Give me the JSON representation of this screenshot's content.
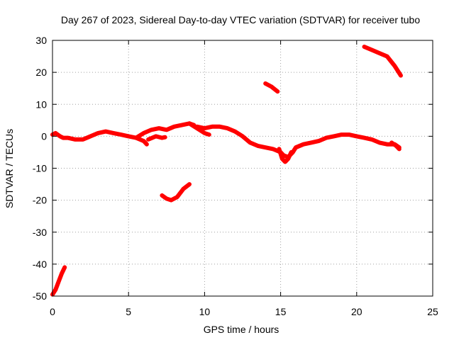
{
  "chart_data": {
    "type": "scatter",
    "title": "Day 267 of 2023, Sidereal Day-to-day VTEC variation (SDTVAR) for receiver tubo",
    "xlabel": "GPS time / hours",
    "ylabel": "SDTVAR / TECUs",
    "xlim": [
      0,
      25
    ],
    "ylim": [
      -50,
      30
    ],
    "xticks": [
      0,
      5,
      10,
      15,
      20,
      25
    ],
    "yticks": [
      -50,
      -40,
      -30,
      -20,
      -10,
      0,
      10,
      20,
      30
    ],
    "grid": true,
    "series_color": "#ff0000",
    "series": [
      {
        "name": "arc-1",
        "points": [
          [
            0.0,
            -49.5
          ],
          [
            0.2,
            -48
          ],
          [
            0.4,
            -45.5
          ],
          [
            0.6,
            -43
          ],
          [
            0.8,
            -41
          ]
        ]
      },
      {
        "name": "arc-2",
        "points": [
          [
            0.0,
            0.5
          ],
          [
            0.2,
            1
          ],
          [
            0.5,
            0
          ],
          [
            0.7,
            -0.5
          ],
          [
            1.0,
            -0.5
          ],
          [
            1.5,
            -1
          ],
          [
            2.0,
            -1
          ],
          [
            2.5,
            0
          ],
          [
            3.0,
            1
          ],
          [
            3.5,
            1.5
          ],
          [
            4.0,
            1
          ],
          [
            4.5,
            0.5
          ],
          [
            5.0,
            0
          ],
          [
            5.5,
            -0.5
          ],
          [
            6.0,
            -1.5
          ],
          [
            6.2,
            -2.5
          ]
        ]
      },
      {
        "name": "arc-3",
        "points": [
          [
            5.5,
            -0.5
          ],
          [
            6.0,
            1
          ],
          [
            6.5,
            2
          ],
          [
            7.0,
            2.5
          ],
          [
            7.5,
            2
          ],
          [
            8.0,
            3
          ],
          [
            8.5,
            3.5
          ],
          [
            9.0,
            4
          ],
          [
            9.3,
            3.5
          ]
        ]
      },
      {
        "name": "arc-4",
        "points": [
          [
            6.3,
            -1
          ],
          [
            6.8,
            0
          ],
          [
            7.2,
            -0.5
          ],
          [
            7.4,
            -0.3
          ]
        ]
      },
      {
        "name": "arc-5",
        "points": [
          [
            9.0,
            4
          ],
          [
            9.5,
            2.5
          ],
          [
            10.0,
            1
          ],
          [
            10.3,
            0.5
          ]
        ]
      },
      {
        "name": "arc-6",
        "points": [
          [
            9.5,
            3
          ],
          [
            10.0,
            2.5
          ],
          [
            10.5,
            3
          ],
          [
            11.0,
            3
          ],
          [
            11.5,
            2.5
          ],
          [
            12.0,
            1.5
          ],
          [
            12.5,
            0
          ],
          [
            13.0,
            -2
          ],
          [
            13.5,
            -3
          ],
          [
            14.0,
            -3.5
          ],
          [
            14.5,
            -4
          ],
          [
            15.0,
            -5
          ],
          [
            15.2,
            -6
          ],
          [
            15.5,
            -6.5
          ],
          [
            15.8,
            -5
          ],
          [
            16.0,
            -3.5
          ],
          [
            16.5,
            -2.5
          ],
          [
            17.0,
            -2
          ],
          [
            17.5,
            -1.5
          ],
          [
            18.0,
            -0.5
          ],
          [
            18.5,
            0
          ],
          [
            19.0,
            0.5
          ],
          [
            19.5,
            0.5
          ],
          [
            20.0,
            0
          ],
          [
            20.5,
            -0.5
          ],
          [
            21.0,
            -1
          ],
          [
            21.5,
            -2
          ],
          [
            22.0,
            -2.5
          ],
          [
            22.5,
            -2.5
          ],
          [
            22.8,
            -3.5
          ]
        ]
      },
      {
        "name": "arc-7",
        "points": [
          [
            14.9,
            -4
          ],
          [
            15.1,
            -7
          ],
          [
            15.3,
            -8
          ],
          [
            15.5,
            -7
          ],
          [
            15.7,
            -5
          ]
        ]
      },
      {
        "name": "arc-8",
        "points": [
          [
            22.3,
            -2
          ],
          [
            22.6,
            -3
          ],
          [
            22.8,
            -4
          ]
        ]
      },
      {
        "name": "arc-9",
        "points": [
          [
            7.2,
            -18.5
          ],
          [
            7.5,
            -19.5
          ],
          [
            7.8,
            -20
          ],
          [
            8.2,
            -19
          ],
          [
            8.6,
            -16.5
          ],
          [
            9.0,
            -15
          ]
        ]
      },
      {
        "name": "arc-10",
        "points": [
          [
            14.0,
            16.5
          ],
          [
            14.4,
            15.5
          ],
          [
            14.8,
            14
          ]
        ]
      },
      {
        "name": "arc-11",
        "points": [
          [
            20.5,
            28
          ],
          [
            21.0,
            27
          ],
          [
            21.5,
            26
          ],
          [
            22.0,
            25
          ],
          [
            22.5,
            22
          ],
          [
            22.9,
            19
          ]
        ]
      }
    ]
  }
}
